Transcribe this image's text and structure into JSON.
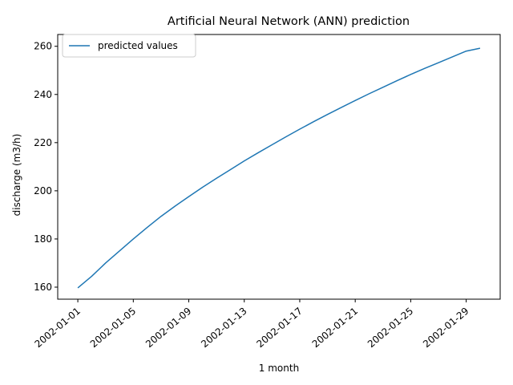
{
  "chart_data": {
    "type": "line",
    "title": "Artificial Neural Network (ANN) prediction",
    "xlabel": "1 month",
    "ylabel": "discharge (m3/h)",
    "x_type": "date",
    "x": [
      "2002-01-01",
      "2002-01-02",
      "2002-01-03",
      "2002-01-04",
      "2002-01-05",
      "2002-01-06",
      "2002-01-07",
      "2002-01-08",
      "2002-01-09",
      "2002-01-10",
      "2002-01-11",
      "2002-01-12",
      "2002-01-13",
      "2002-01-14",
      "2002-01-15",
      "2002-01-16",
      "2002-01-17",
      "2002-01-18",
      "2002-01-19",
      "2002-01-20",
      "2002-01-21",
      "2002-01-22",
      "2002-01-23",
      "2002-01-24",
      "2002-01-25",
      "2002-01-26",
      "2002-01-27",
      "2002-01-28",
      "2002-01-29",
      "2002-01-30"
    ],
    "series": [
      {
        "name": "predicted values",
        "color": "#1f77b4",
        "values": [
          159.7,
          164.5,
          170.0,
          175.0,
          180.0,
          184.8,
          189.4,
          193.6,
          197.6,
          201.5,
          205.2,
          208.8,
          212.4,
          215.8,
          219.1,
          222.4,
          225.6,
          228.7,
          231.7,
          234.6,
          237.5,
          240.3,
          243.0,
          245.7,
          248.3,
          250.8,
          253.2,
          255.6,
          258.0,
          259.2
        ]
      }
    ],
    "ylim": [
      155,
      264.9
    ],
    "yticks": [
      160,
      180,
      200,
      220,
      240,
      260
    ],
    "xticks": [
      "2002-01-01",
      "2002-01-05",
      "2002-01-09",
      "2002-01-13",
      "2002-01-17",
      "2002-01-21",
      "2002-01-25",
      "2002-01-29"
    ],
    "legend": "top-left",
    "grid": false
  }
}
